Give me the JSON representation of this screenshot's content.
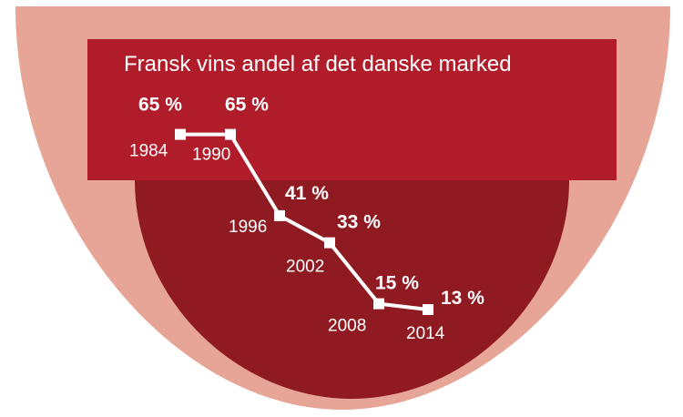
{
  "colors": {
    "outer_glass": "#e6a596",
    "upper_wine": "#b01c2a",
    "lower_wine": "#901a22",
    "line": "#ffffff"
  },
  "chart_data": {
    "type": "line",
    "title": "Fransk vins andel af det danske marked",
    "x": [
      "1984",
      "1990",
      "1996",
      "2002",
      "2008",
      "2014"
    ],
    "values": [
      65,
      65,
      41,
      33,
      15,
      13
    ],
    "value_labels": [
      "65 %",
      "65 %",
      "41 %",
      "33 %",
      "15 %",
      "13 %"
    ],
    "unit": "%",
    "xlabel": "",
    "ylabel": ""
  }
}
